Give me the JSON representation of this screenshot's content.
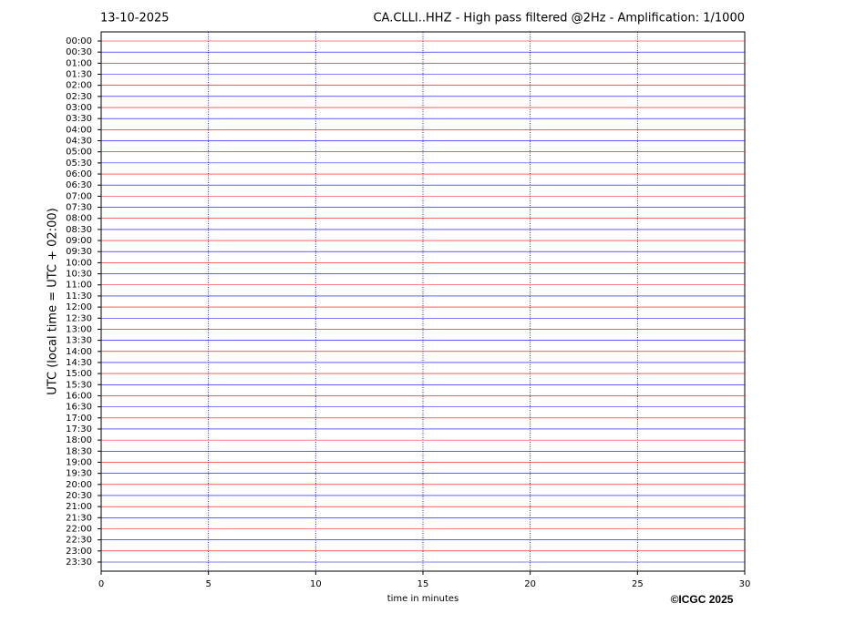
{
  "chart_data": {
    "type": "helicorder",
    "date": "13-10-2025",
    "title": "CA.CLLI..HHZ - High pass filtered @2Hz - Amplification: 1/1000",
    "y_label": "UTC (local time = UTC + 02:00)",
    "x_label": "time in minutes",
    "copyright": "©ICGC 2025",
    "categories": [
      "00:00",
      "00:30",
      "01:00",
      "01:30",
      "02:00",
      "02:30",
      "03:00",
      "03:30",
      "04:00",
      "04:30",
      "05:00",
      "05:30",
      "06:00",
      "06:30",
      "07:00",
      "07:30",
      "08:00",
      "08:30",
      "09:00",
      "09:30",
      "10:00",
      "10:30",
      "11:00",
      "11:30",
      "12:00",
      "12:30",
      "13:00",
      "13:30",
      "14:00",
      "14:30",
      "15:00",
      "15:30",
      "16:00",
      "16:30",
      "17:00",
      "17:30",
      "18:00",
      "18:30",
      "19:00",
      "19:30",
      "20:00",
      "20:30",
      "21:00",
      "21:30",
      "22:00",
      "22:30",
      "23:00",
      "23:30"
    ],
    "trace_colors": [
      "#ff0000",
      "#0000ff"
    ],
    "xlim": [
      0,
      30
    ],
    "xticks": [
      0,
      5,
      10,
      15,
      20,
      25,
      30
    ],
    "grid": true
  }
}
